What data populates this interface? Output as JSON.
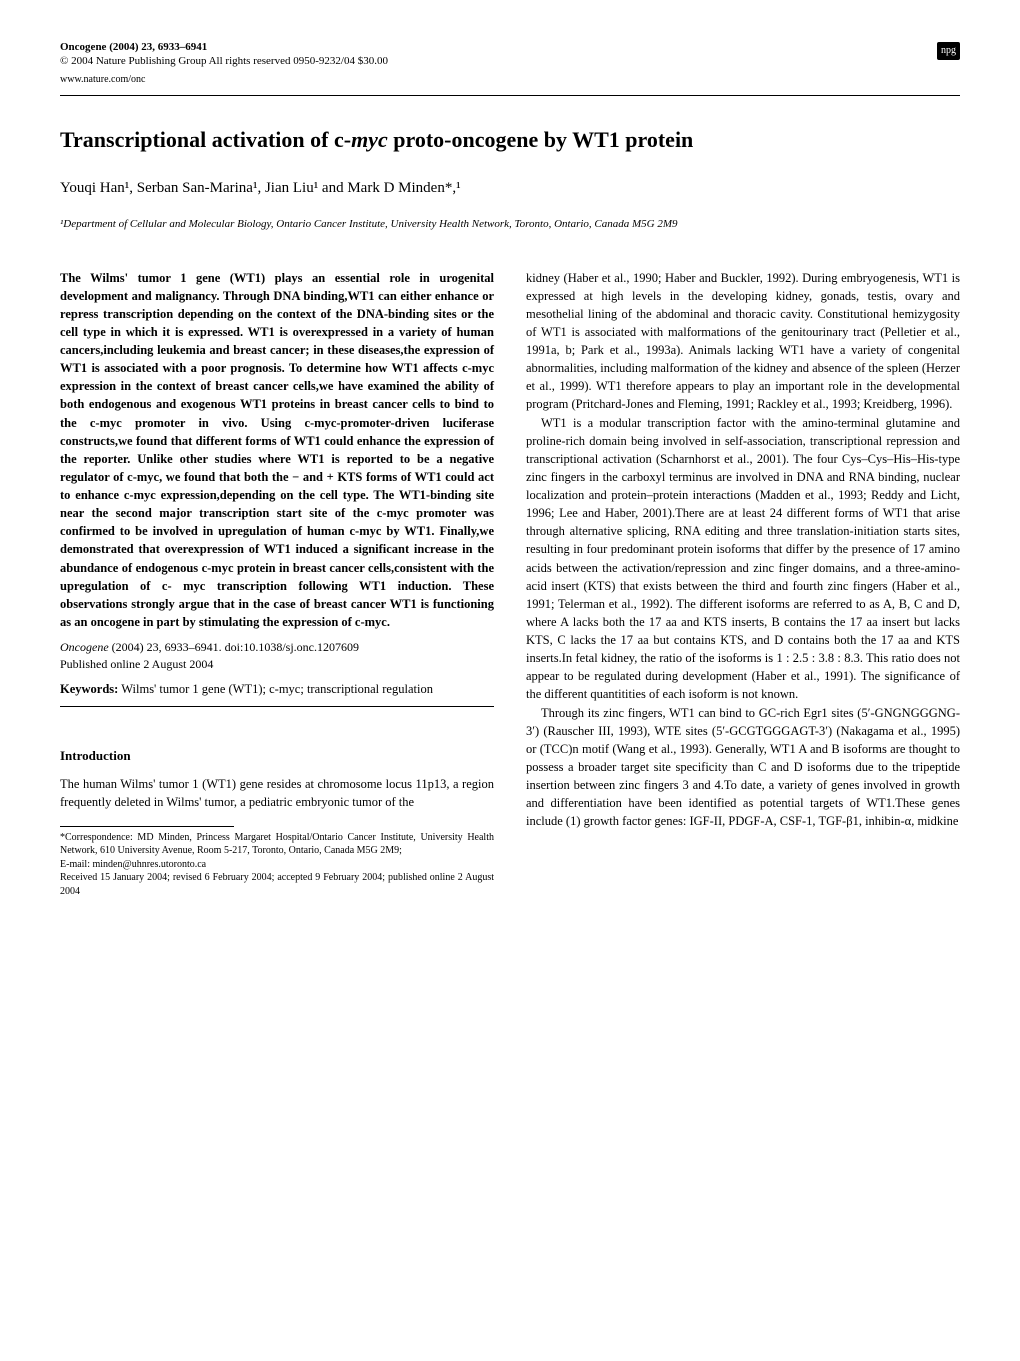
{
  "header": {
    "journal": "Oncogene (2004) 23, 6933–6941",
    "copyright": "© 2004 Nature Publishing Group   All rights reserved 0950-9232/04 $30.00",
    "website": "www.nature.com/onc",
    "logo": "npg"
  },
  "article": {
    "title_pre": "Transcriptional activation of c-",
    "title_italic": "myc",
    "title_post": " proto-oncogene by WT1 protein",
    "authors": "Youqi Han¹, Serban San-Marina¹, Jian Liu¹ and Mark D Minden*,¹",
    "affiliation": "¹Department of Cellular and Molecular Biology, Ontario Cancer Institute, University Health Network, Toronto, Ontario, Canada M5G 2M9"
  },
  "abstract": {
    "text": "The Wilms' tumor 1 gene (WT1) plays an essential role in urogenital development and malignancy. Through DNA binding,WT1 can either enhance or repress transcription depending on the context of the DNA-binding sites or the cell type in which it is expressed. WT1 is overexpressed in a variety of human cancers,including leukemia and breast cancer; in these diseases,the expression of WT1 is associated with a poor prognosis. To determine how WT1 affects c-myc expression in the context of breast cancer cells,we have examined the ability of both endogenous and exogenous WT1 proteins in breast cancer cells to bind to the c-myc promoter in vivo. Using c-myc-promoter-driven luciferase constructs,we found that different forms of WT1 could enhance the expression of the reporter. Unlike other studies where WT1 is reported to be a negative regulator of c-myc, we found that both the − and + KTS forms of WT1 could act to enhance c-myc expression,depending on the cell type. The WT1-binding site near the second major transcription start site of the c-myc promoter was confirmed to be involved in upregulation of human c-myc by WT1. Finally,we demonstrated that overexpression of WT1 induced a significant increase in the abundance of endogenous c-myc protein in breast cancer cells,consistent with the upregulation of c- myc transcription following WT1 induction. These observations strongly argue that in the case of breast cancer WT1 is functioning as an oncogene in part by stimulating the expression of c-myc."
  },
  "citation": {
    "line1_italic": "Oncogene",
    "line1_rest": " (2004) 23, 6933–6941. doi:10.1038/sj.onc.1207609",
    "line2": "Published online 2 August 2004"
  },
  "keywords": {
    "label": "Keywords:",
    "text": " Wilms' tumor 1 gene (WT1); c-myc; transcriptional regulation"
  },
  "intro": {
    "heading": "Introduction",
    "para1": "The human Wilms' tumor 1 (WT1) gene resides at chromosome locus 11p13, a region frequently deleted in Wilms' tumor, a pediatric embryonic tumor of the"
  },
  "footnote": {
    "correspondence": "*Correspondence: MD Minden, Princess Margaret Hospital/Ontario Cancer Institute, University Health Network, 610 University Avenue, Room 5-217, Toronto, Ontario, Canada M5G 2M9;",
    "email": "E-mail: minden@uhnres.utoronto.ca",
    "received": "Received 15 January 2004; revised 6 February 2004; accepted 9 February 2004; published online 2 August 2004"
  },
  "rightcol": {
    "para1": "kidney (Haber et al., 1990; Haber and Buckler, 1992). During embryogenesis, WT1 is expressed at high levels in the developing kidney, gonads, testis, ovary and mesothelial lining of the abdominal and thoracic cavity. Constitutional hemizygosity of WT1 is associated with malformations of the genitourinary tract (Pelletier et al., 1991a, b; Park et al., 1993a). Animals lacking WT1 have a variety of congenital abnormalities, including malformation of the kidney and absence of the spleen (Herzer et al., 1999). WT1 therefore appears to play an important role in the developmental program (Pritchard-Jones and Fleming, 1991; Rackley et al., 1993; Kreidberg, 1996).",
    "para2": "WT1 is a modular transcription factor with the amino-terminal glutamine and proline-rich domain being involved in self-association, transcriptional repression and transcriptional activation (Scharnhorst et al., 2001). The four Cys–Cys–His–His-type zinc fingers in the carboxyl terminus are involved in DNA and RNA binding, nuclear localization and protein–protein interactions (Madden et al., 1993; Reddy and Licht, 1996; Lee and Haber, 2001).There are at least 24 different forms of WT1 that arise through alternative splicing, RNA editing and three translation-initiation starts sites, resulting in four predominant protein isoforms that differ by the presence of 17 amino acids between the activation/repression and zinc finger domains, and a three-amino-acid insert (KTS) that exists between the third and fourth zinc fingers (Haber et al., 1991; Telerman et al., 1992). The different isoforms are referred to as A, B, C and D, where A lacks both the 17 aa and KTS inserts, B contains the 17 aa insert but lacks KTS, C lacks the 17 aa but contains KTS, and D contains both the 17 aa and KTS inserts.In fetal kidney, the ratio of the isoforms is 1 : 2.5 : 3.8 : 8.3. This ratio does not appear to be regulated during development (Haber et al., 1991). The significance of the different quantitities of each isoform is not known.",
    "para3": "Through its zinc fingers, WT1 can bind to GC-rich Egr1 sites (5′-GNGNGGGNG-3′) (Rauscher III, 1993), WTE sites (5′-GCGTGGGAGT-3′) (Nakagama et al., 1995) or (TCC)n motif (Wang et al., 1993). Generally, WT1 A and B isoforms are thought to possess a broader target site specificity than C and D isoforms due to the tripeptide insertion between zinc fingers 3 and 4.To date, a variety of genes involved in growth and differentiation have been identified as potential targets of WT1.These genes include (1) growth factor genes: IGF-II, PDGF-A, CSF-1, TGF-β1, inhibin-α, midkine"
  }
}
